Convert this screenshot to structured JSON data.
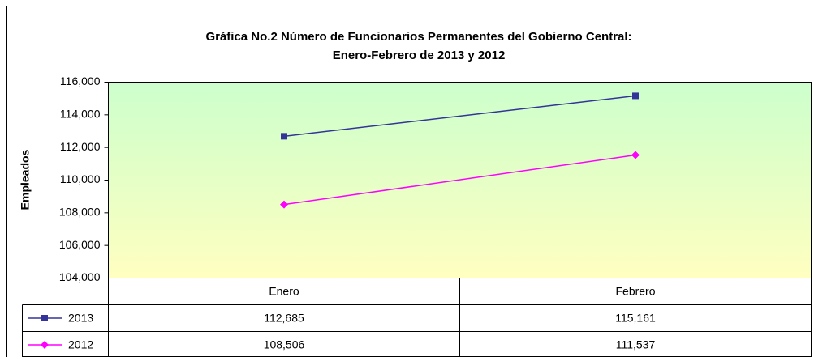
{
  "chart_data": {
    "type": "line",
    "title": [
      "Gráfica No.2 Número de Funcionarios Permanentes del Gobierno Central:",
      "Enero-Febrero de 2013 y 2012"
    ],
    "ylabel": "Empleados",
    "categories": [
      "Enero",
      "Febrero"
    ],
    "series": [
      {
        "name": "2013",
        "color": "#333399",
        "marker": "square",
        "values": [
          112685,
          115161
        ],
        "value_labels": [
          "112,685",
          "115,161"
        ]
      },
      {
        "name": "2012",
        "color": "#ff00ff",
        "marker": "diamond",
        "values": [
          108506,
          111537
        ],
        "value_labels": [
          "108,506",
          "111,537"
        ]
      }
    ],
    "ylim": [
      104000,
      116000
    ],
    "yticks": [
      {
        "value": 104000,
        "label": "104,000"
      },
      {
        "value": 106000,
        "label": "106,000"
      },
      {
        "value": 108000,
        "label": "108,000"
      },
      {
        "value": 110000,
        "label": "110,000"
      },
      {
        "value": 112000,
        "label": "112,000"
      },
      {
        "value": 114000,
        "label": "114,000"
      },
      {
        "value": 116000,
        "label": "116,000"
      }
    ],
    "grid": false
  }
}
